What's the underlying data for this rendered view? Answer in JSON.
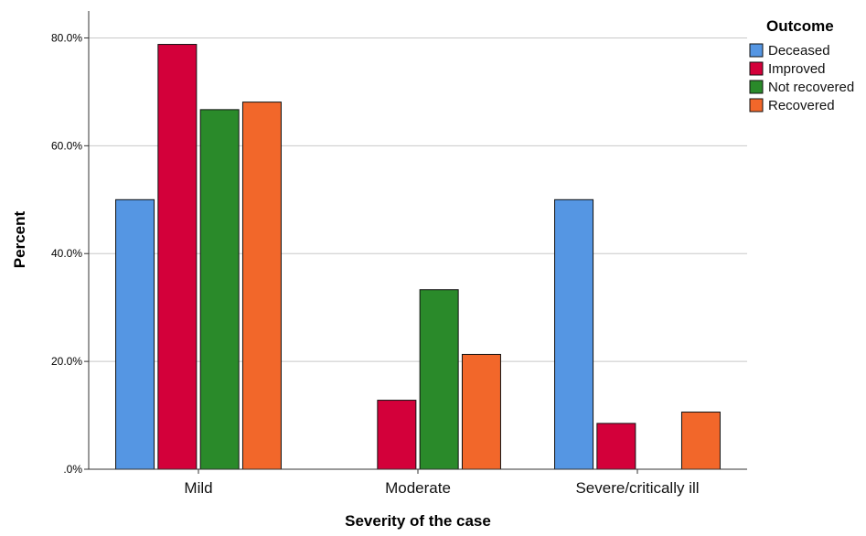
{
  "chart_data": {
    "type": "bar",
    "xlabel": "Severity of the case",
    "ylabel": "Percent",
    "ylim": [
      0,
      85
    ],
    "yticks": [
      0,
      20,
      40,
      60,
      80
    ],
    "ytick_labels": [
      ".0%",
      "20.0%",
      "40.0%",
      "60.0%",
      "80.0%"
    ],
    "categories": [
      "Mild",
      "Moderate",
      "Severe/critically ill"
    ],
    "grid": true,
    "legend": {
      "title": "Outcome",
      "position": "top-right"
    },
    "series": [
      {
        "name": "Deceased",
        "color": "#5596e3",
        "values": [
          50.0,
          0.0,
          50.0
        ]
      },
      {
        "name": "Improved",
        "color": "#d3003a",
        "values": [
          78.8,
          12.8,
          8.5
        ]
      },
      {
        "name": "Not recovered",
        "color": "#2a8a2a",
        "values": [
          66.7,
          33.3,
          0.0
        ]
      },
      {
        "name": "Recovered",
        "color": "#f2672a",
        "values": [
          68.1,
          21.3,
          10.6
        ]
      }
    ]
  }
}
